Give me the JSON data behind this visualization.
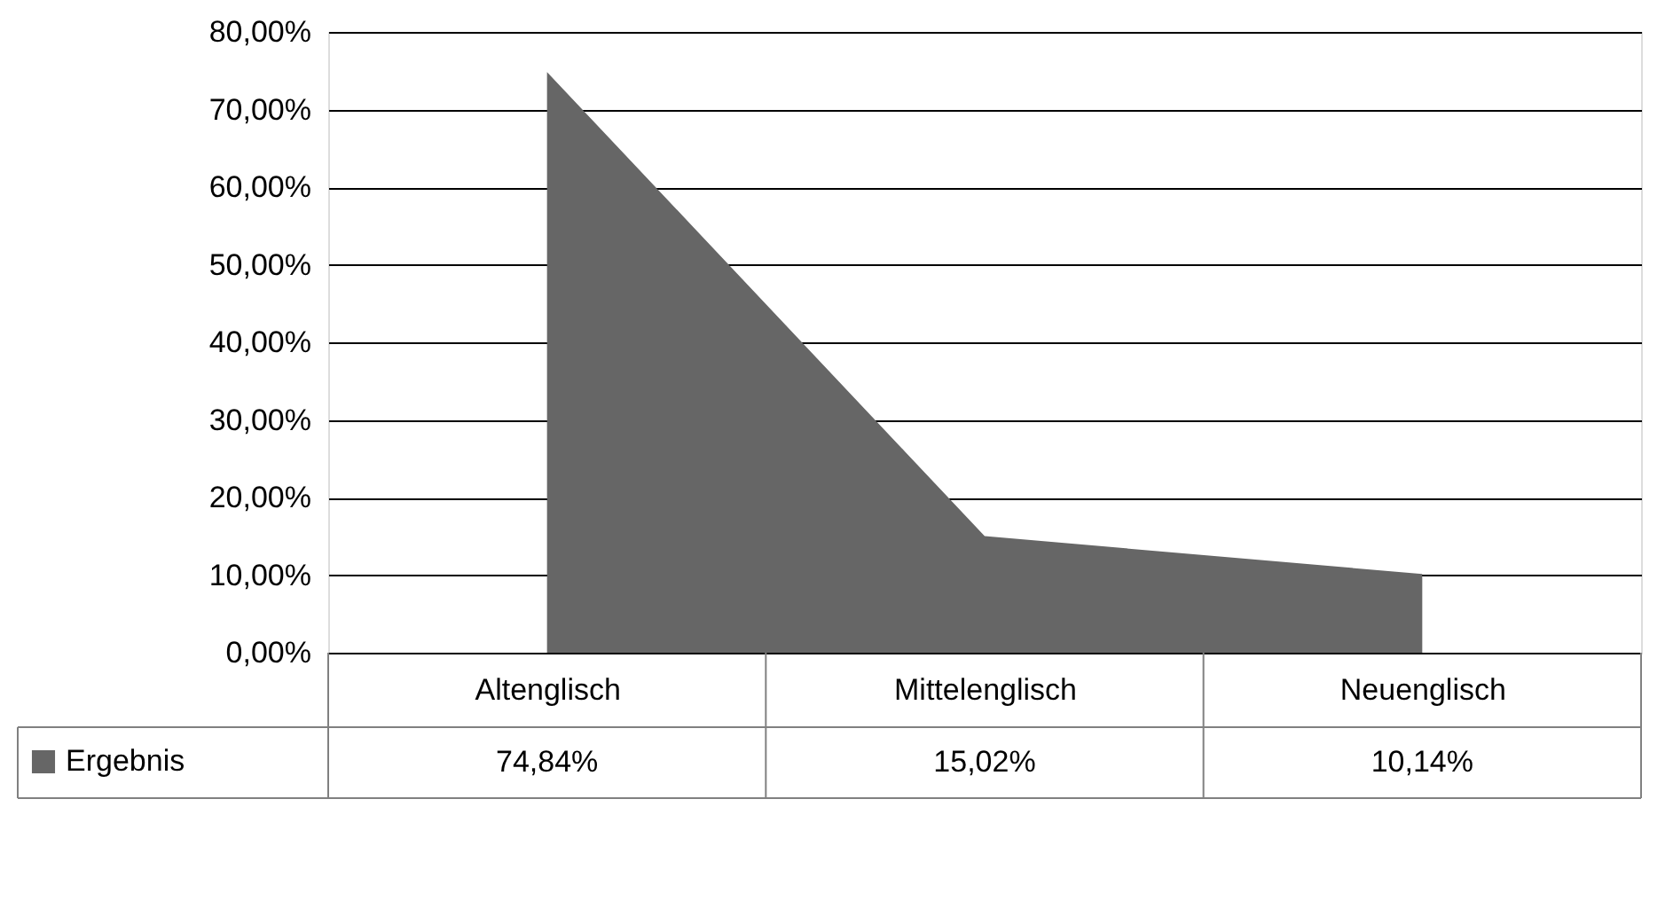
{
  "chart_data": {
    "type": "area",
    "categories": [
      "Altenglisch",
      "Mittelenglisch",
      "Neuenglisch"
    ],
    "series": [
      {
        "name": "Ergebnis",
        "color": "#666666",
        "values": [
          74.84,
          15.02,
          10.14
        ],
        "value_labels": [
          "74,84%",
          "15,02%",
          "10,14%"
        ]
      }
    ],
    "ylim": [
      0,
      80
    ],
    "yticks": [
      {
        "value": 0,
        "label": "0,00%"
      },
      {
        "value": 10,
        "label": "10,00%"
      },
      {
        "value": 20,
        "label": "20,00%"
      },
      {
        "value": 30,
        "label": "30,00%"
      },
      {
        "value": 40,
        "label": "40,00%"
      },
      {
        "value": 50,
        "label": "50,00%"
      },
      {
        "value": 60,
        "label": "60,00%"
      },
      {
        "value": 70,
        "label": "70,00%"
      },
      {
        "value": 80,
        "label": "80,00%"
      }
    ],
    "grid": "y",
    "legend": "bottom left"
  }
}
